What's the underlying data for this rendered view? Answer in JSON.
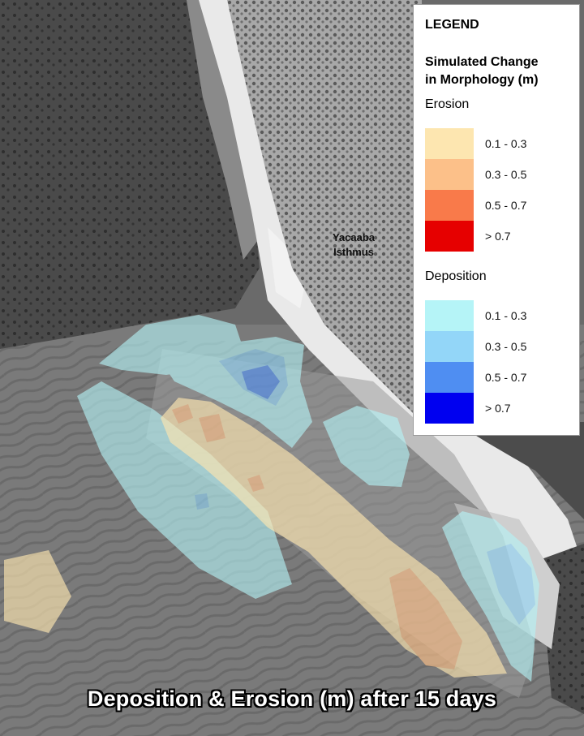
{
  "map": {
    "place_label_line1": "Yacaaba",
    "place_label_line2": "Isthmus",
    "caption": "Deposition & Erosion (m) after 15 days"
  },
  "legend": {
    "title": "LEGEND",
    "subtitle_line1": "Simulated Change",
    "subtitle_line2": "in Morphology (m)",
    "erosion": {
      "label": "Erosion",
      "items": [
        {
          "label": "0.1 - 0.3",
          "color": "#fde6b0"
        },
        {
          "label": "0.3 - 0.5",
          "color": "#fcc089"
        },
        {
          "label": "0.5 - 0.7",
          "color": "#f97a4a"
        },
        {
          "label": "> 0.7",
          "color": "#e60000"
        }
      ]
    },
    "deposition": {
      "label": "Deposition",
      "items": [
        {
          "label": "0.1 - 0.3",
          "color": "#b5f4f7"
        },
        {
          "label": "0.3 - 0.5",
          "color": "#93d6f8"
        },
        {
          "label": "0.5 - 0.7",
          "color": "#4f8ef2"
        },
        {
          "label": "> 0.7",
          "color": "#0000f0"
        }
      ]
    }
  }
}
